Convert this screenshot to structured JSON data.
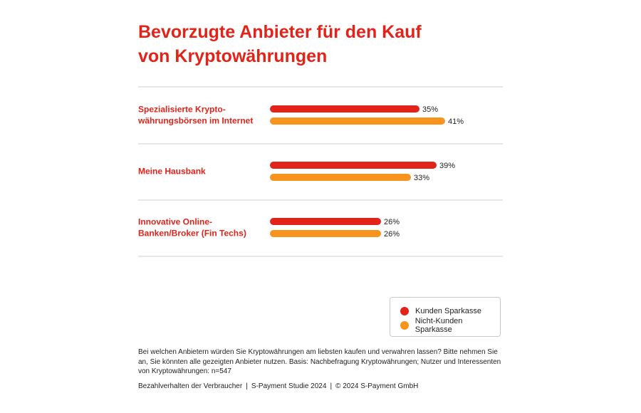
{
  "title_lines": [
    "Bevorzugte Anbieter für den Kauf",
    "von Kryptowährungen"
  ],
  "chart_data": {
    "type": "bar",
    "orientation": "horizontal",
    "categories": [
      [
        "Spezialisierte Krypto-",
        "währungsbörsen im Internet"
      ],
      [
        "Meine Hausbank"
      ],
      [
        "Innovative Online-",
        "Banken/Broker (Fin Techs)"
      ]
    ],
    "series": [
      {
        "name": "Kunden Sparkasse",
        "color": "#e2231a",
        "values": [
          35,
          39,
          26
        ]
      },
      {
        "name": "Nicht-Kunden Sparkasse",
        "color": "#f7941d",
        "values": [
          41,
          33,
          26
        ]
      }
    ],
    "value_suffix": "%",
    "xlim": [
      0,
      100
    ],
    "grid": false,
    "legend": "bottom-right"
  },
  "note": "Bei welchen Anbietern würden Sie Kryptowährungen am liebsten kaufen und verwahren lassen? Bitte nehmen Sie an, Sie könnten alle gezeigten Anbieter nutzen. Basis: Nachbefragung Kryptowährungen; Nutzer und Interessenten von Kryptowährungen: n=547",
  "footer": {
    "part1": "Bezahlverhalten der Verbraucher",
    "part2": "S-Payment Studie 2024",
    "part3": "© 2024 S-Payment GmbH",
    "separator": "|"
  }
}
